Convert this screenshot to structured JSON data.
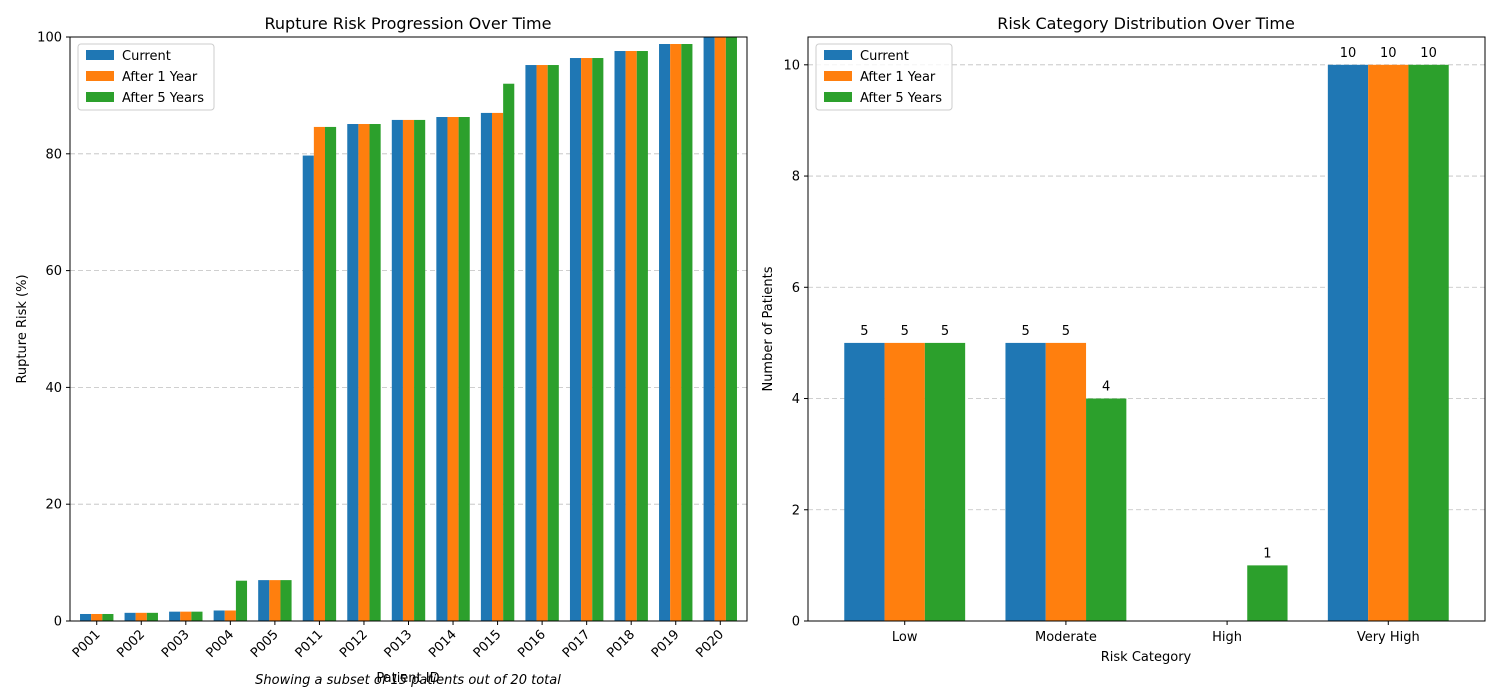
{
  "colors": {
    "current": "#1f77b4",
    "year1": "#ff7f0e",
    "year5": "#2ca02c"
  },
  "chart_data": [
    {
      "type": "bar",
      "title": "Rupture Risk Progression Over Time",
      "xlabel": "Patient ID",
      "ylabel": "Rupture Risk (%)",
      "ylim": [
        0,
        100
      ],
      "yticks": [
        0,
        20,
        40,
        60,
        80,
        100
      ],
      "grid": "y",
      "legend": "top-left",
      "note": "Showing a subset of 15 patients out of 20 total",
      "categories": [
        "P001",
        "P002",
        "P003",
        "P004",
        "P005",
        "P011",
        "P012",
        "P013",
        "P014",
        "P015",
        "P016",
        "P017",
        "P018",
        "P019",
        "P020"
      ],
      "series": [
        {
          "name": "Current",
          "color": "#1f77b4",
          "values": [
            1.2,
            1.4,
            1.6,
            1.8,
            7.0,
            79.7,
            85.1,
            85.8,
            86.3,
            87.0,
            95.2,
            96.4,
            97.6,
            98.8,
            100.0
          ]
        },
        {
          "name": "After 1 Year",
          "color": "#ff7f0e",
          "values": [
            1.2,
            1.4,
            1.6,
            1.8,
            7.0,
            84.6,
            85.1,
            85.8,
            86.3,
            87.0,
            95.2,
            96.4,
            97.6,
            98.8,
            100.0
          ]
        },
        {
          "name": "After 5 Years",
          "color": "#2ca02c",
          "values": [
            1.2,
            1.4,
            1.6,
            6.9,
            7.0,
            84.6,
            85.1,
            85.8,
            86.3,
            92.0,
            95.2,
            96.4,
            97.6,
            98.8,
            100.0
          ]
        }
      ]
    },
    {
      "type": "bar",
      "title": "Risk Category Distribution Over Time",
      "xlabel": "Risk Category",
      "ylabel": "Number of Patients",
      "ylim": [
        0,
        10.5
      ],
      "yticks": [
        0,
        2,
        4,
        6,
        8,
        10
      ],
      "grid": "y",
      "legend": "top-left",
      "categories": [
        "Low",
        "Moderate",
        "High",
        "Very High"
      ],
      "series": [
        {
          "name": "Current",
          "color": "#1f77b4",
          "values": [
            5,
            5,
            0,
            10
          ]
        },
        {
          "name": "After 1 Year",
          "color": "#ff7f0e",
          "values": [
            5,
            5,
            0,
            10
          ]
        },
        {
          "name": "After 5 Years",
          "color": "#2ca02c",
          "values": [
            5,
            4,
            1,
            10
          ]
        }
      ]
    }
  ]
}
